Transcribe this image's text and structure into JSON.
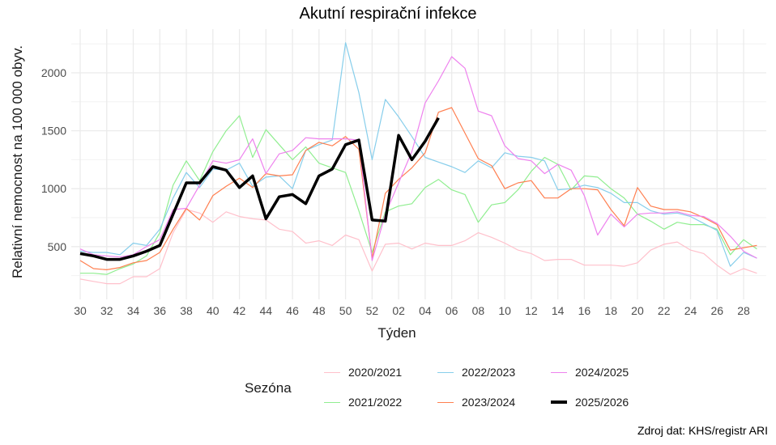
{
  "chart_data": {
    "type": "line",
    "title": "Akutní respirační infekce",
    "xlabel": "Týden",
    "ylabel": "Relativní nemocnost na 100 000 obyv.",
    "source": "Zdroj dat: KHS/registr ARI",
    "legend_title": "Sezóna",
    "legend_position": "bottom",
    "grid": true,
    "ylim": [
      150,
      2320
    ],
    "yticks": [
      500,
      1000,
      1500,
      2000
    ],
    "x": [
      "30",
      "31",
      "32",
      "33",
      "34",
      "35",
      "36",
      "37",
      "38",
      "39",
      "40",
      "41",
      "42",
      "43",
      "44",
      "45",
      "46",
      "47",
      "48",
      "49",
      "50",
      "51",
      "52",
      "01",
      "02",
      "03",
      "04",
      "05",
      "06",
      "07",
      "08",
      "09",
      "10",
      "11",
      "12",
      "13",
      "14",
      "15",
      "16",
      "17",
      "18",
      "19",
      "20",
      "21",
      "22",
      "23",
      "24",
      "25",
      "26",
      "27",
      "28",
      "29"
    ],
    "xticks": [
      "30",
      "32",
      "34",
      "36",
      "38",
      "40",
      "42",
      "44",
      "46",
      "48",
      "50",
      "52",
      "02",
      "04",
      "06",
      "08",
      "10",
      "12",
      "14",
      "16",
      "18",
      "20",
      "22",
      "24",
      "26",
      "28"
    ],
    "series": [
      {
        "name": "2020/2021",
        "color": "#FFC0CB",
        "width": 1.2,
        "values": [
          220,
          200,
          180,
          180,
          240,
          240,
          310,
          620,
          820,
          790,
          710,
          800,
          760,
          740,
          730,
          650,
          630,
          530,
          550,
          510,
          600,
          560,
          290,
          520,
          530,
          480,
          530,
          510,
          510,
          550,
          620,
          580,
          530,
          470,
          440,
          380,
          390,
          390,
          340,
          340,
          340,
          330,
          360,
          470,
          520,
          540,
          470,
          440,
          340,
          260,
          310,
          270
        ]
      },
      {
        "name": "2021/2022",
        "color": "#90EE90",
        "width": 1.2,
        "values": [
          270,
          270,
          260,
          310,
          350,
          420,
          620,
          1030,
          1240,
          1070,
          1320,
          1500,
          1630,
          1270,
          1510,
          1380,
          1250,
          1360,
          1220,
          1180,
          1140,
          810,
          450,
          800,
          850,
          870,
          1010,
          1080,
          990,
          950,
          710,
          860,
          880,
          990,
          1150,
          1270,
          1210,
          990,
          1110,
          1100,
          1000,
          920,
          780,
          720,
          650,
          710,
          690,
          690,
          650,
          430,
          560,
          480
        ]
      },
      {
        "name": "2022/2023",
        "color": "#87CEEB",
        "width": 1.2,
        "values": [
          460,
          450,
          450,
          430,
          530,
          510,
          650,
          920,
          1140,
          1010,
          1170,
          1160,
          1220,
          1020,
          1100,
          1110,
          1000,
          1330,
          1380,
          1420,
          2260,
          1830,
          1250,
          1770,
          1620,
          1450,
          1270,
          1230,
          1190,
          1140,
          1240,
          1180,
          1310,
          1280,
          1270,
          1240,
          990,
          1000,
          1030,
          1010,
          960,
          880,
          880,
          810,
          780,
          790,
          760,
          700,
          640,
          330,
          450,
          400
        ]
      },
      {
        "name": "2023/2024",
        "color": "#FF7F50",
        "width": 1.2,
        "values": [
          380,
          310,
          300,
          320,
          360,
          380,
          450,
          650,
          830,
          730,
          940,
          1020,
          1090,
          1010,
          1130,
          1110,
          1120,
          1330,
          1400,
          1370,
          1450,
          1340,
          400,
          960,
          1080,
          1180,
          1310,
          1660,
          1700,
          1480,
          1260,
          1200,
          1000,
          1050,
          1070,
          920,
          920,
          1000,
          1000,
          990,
          820,
          680,
          1010,
          850,
          820,
          820,
          800,
          750,
          690,
          470,
          490,
          510
        ]
      },
      {
        "name": "2024/2025",
        "color": "#EE82EE",
        "width": 1.2,
        "values": [
          480,
          430,
          420,
          410,
          430,
          500,
          560,
          820,
          830,
          1030,
          1240,
          1220,
          1250,
          1430,
          1130,
          1300,
          1330,
          1440,
          1430,
          1430,
          1430,
          1420,
          380,
          780,
          1050,
          1320,
          1740,
          1930,
          2140,
          2040,
          1670,
          1630,
          1370,
          1260,
          1240,
          1130,
          1210,
          1160,
          940,
          600,
          780,
          670,
          780,
          790,
          790,
          800,
          770,
          760,
          700,
          590,
          460,
          400
        ]
      },
      {
        "name": "2025/2026",
        "color": "#000000",
        "width": 3.5,
        "values": [
          440,
          420,
          390,
          390,
          420,
          460,
          510,
          780,
          1050,
          1050,
          1190,
          1160,
          1010,
          1110,
          740,
          930,
          950,
          870,
          1110,
          1170,
          1380,
          1420,
          730,
          720,
          1460,
          1250,
          1410,
          1610,
          null,
          null,
          null,
          null,
          null,
          null,
          null,
          null,
          null,
          null,
          null,
          null,
          null,
          null,
          null,
          null,
          null,
          null,
          null,
          null,
          null,
          null,
          null,
          null
        ]
      }
    ]
  },
  "ui": {
    "title": "Akutní respirační infekce",
    "xlabel": "Týden",
    "ylabel": "Relativní nemocnost na 100 000 obyv.",
    "legend_title": "Sezóna",
    "source": "Zdroj dat: KHS/registr ARI",
    "legend_items": [
      {
        "label": "2020/2021",
        "color": "#FFC0CB",
        "col": 0,
        "row": 0
      },
      {
        "label": "2021/2022",
        "color": "#90EE90",
        "col": 0,
        "row": 1
      },
      {
        "label": "2022/2023",
        "color": "#87CEEB",
        "col": 1,
        "row": 0
      },
      {
        "label": "2023/2024",
        "color": "#FF7F50",
        "col": 1,
        "row": 1
      },
      {
        "label": "2024/2025",
        "color": "#EE82EE",
        "col": 2,
        "row": 0
      },
      {
        "label": "2025/2026",
        "color": "#000000",
        "col": 2,
        "row": 1
      }
    ]
  }
}
